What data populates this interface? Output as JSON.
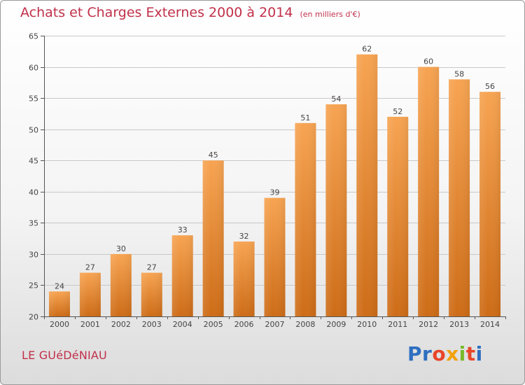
{
  "header": {
    "title": "Achats et Charges Externes 2000 à 2014",
    "subtitle": "(en milliers d'€)"
  },
  "footer": {
    "commune": "LE GUéDéNIAU",
    "brand": "Proxiti"
  },
  "colors": {
    "title": "#c0304a",
    "bar_top": "#f7a452",
    "bar_bottom": "#cd6c17",
    "grid": "#c8c8c8",
    "axis": "#555555",
    "brand_letters": [
      "#2e6fc0",
      "#2e6fc0",
      "#e8452a",
      "#f2a20c",
      "#78b82a",
      "#e8452a",
      "#2e6fc0"
    ]
  },
  "chart_data": {
    "type": "bar",
    "title": "Achats et Charges Externes 2000 à 2014",
    "subtitle": "(en milliers d'€)",
    "xlabel": "",
    "ylabel": "",
    "categories": [
      "2000",
      "2001",
      "2002",
      "2003",
      "2004",
      "2005",
      "2006",
      "2007",
      "2008",
      "2009",
      "2010",
      "2011",
      "2012",
      "2013",
      "2014"
    ],
    "values": [
      24,
      27,
      30,
      27,
      33,
      45,
      32,
      39,
      51,
      54,
      62,
      52,
      60,
      58,
      56
    ],
    "ylim": [
      20,
      65
    ],
    "yticks": [
      20,
      25,
      30,
      35,
      40,
      45,
      50,
      55,
      60,
      65
    ],
    "grid": "horizontal",
    "data_labels": true
  }
}
